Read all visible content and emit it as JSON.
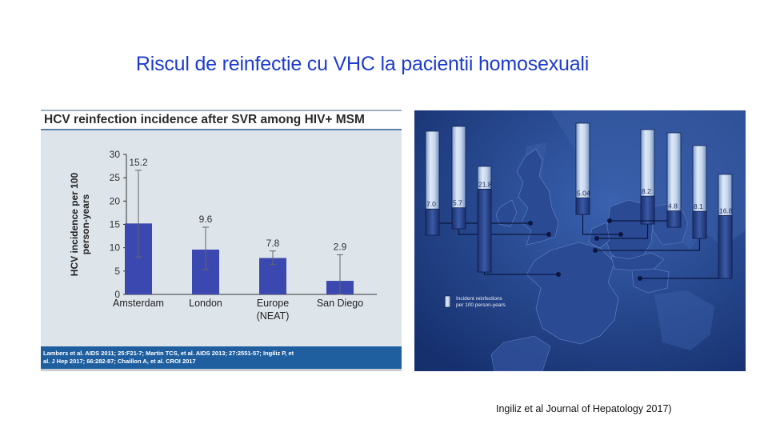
{
  "slide": {
    "title": "Riscul de reinfectie cu VHC la pacientii homosexuali",
    "citation": "Ingiliz et al Journal of Hepatology 2017)"
  },
  "left_panel": {
    "title": "HCV reinfection incidence after SVR among HIV+ MSM",
    "references": [
      "Lambers et al. AIDS 2011; 25:F21-7; Martin TCS, et al. AIDS 2013; 27:2551-57; Ingiliz P, et",
      "al. J Hep 2017; 66:282-87; Chaillon A, et al. CROI 2017"
    ]
  },
  "right_panel": {
    "legend_line1": "Incident reinfections",
    "legend_line2": "per 100 person-years"
  },
  "colors": {
    "bar": "#3b48b0",
    "panel_bg": "#dde4ea",
    "footer_bg": "#1f5fa0",
    "map_bg": "#1e3f86",
    "title": "#1d3ccf"
  },
  "chart_data": [
    {
      "type": "bar",
      "title": "HCV reinfection incidence after SVR among HIV+ MSM",
      "ylabel": "HCV incidence per 100 person-years",
      "xlabel": "",
      "ylim": [
        0,
        30
      ],
      "yticks": [
        0,
        5,
        10,
        15,
        20,
        25,
        30
      ],
      "categories": [
        "Amsterdam",
        "London",
        "Europe",
        "San Diego"
      ],
      "category_sublabels": [
        "",
        "",
        "(NEAT)",
        ""
      ],
      "values": [
        15.2,
        9.6,
        7.8,
        2.9
      ],
      "value_labels": [
        "15.2",
        "9.6",
        "7.8",
        "2.9"
      ],
      "error_low": [
        8,
        5.3,
        6.4,
        0
      ],
      "error_high": [
        26.6,
        14.4,
        9.3,
        8.5
      ],
      "grid": false,
      "legend": "none"
    },
    {
      "type": "bar",
      "title": "",
      "ylabel": "",
      "legend": "bottom-left",
      "legend_label": "Incident reinfections per 100 person-years",
      "values": [
        7.0,
        5.7,
        21.8,
        5.04,
        8.2,
        4.8,
        8.1,
        16.8
      ],
      "value_labels": [
        "7.0",
        "5.7",
        "21.8",
        "5.04",
        "8.2",
        "4.8",
        "8.1",
        "16.8"
      ]
    }
  ]
}
